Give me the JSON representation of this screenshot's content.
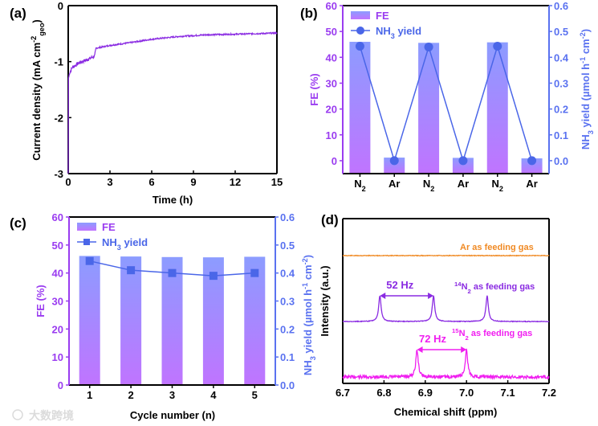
{
  "figure": {
    "watermark": "大数跨境",
    "colors": {
      "purple_axis": "#9a3cf0",
      "blue_axis": "#5a72f0",
      "bar_top": "#8c9cff",
      "bar_bottom": "#c074ff",
      "line_blue": "#4a66e8",
      "orange": "#f08a24",
      "nmr_purple": "#8a2be2",
      "magenta": "#f01ef0",
      "trace_a": "#8a2be2"
    }
  },
  "chart_data": [
    {
      "panel": "(a)",
      "type": "line",
      "xlabel": "Time (h)",
      "ylabel": [
        {
          "t": "Current density (mA cm"
        },
        {
          "t": "-2",
          "s": "sup"
        },
        {
          "t": "geo",
          "s": "sub"
        },
        {
          "t": ")"
        }
      ],
      "xlim": [
        0,
        15
      ],
      "ylim": [
        -3,
        0
      ],
      "xticks": [
        "0",
        "3",
        "6",
        "9",
        "12",
        "15"
      ],
      "yticks": [
        "0",
        "-1",
        "-2",
        "-3"
      ],
      "x": [
        0,
        0.02,
        0.1,
        0.3,
        0.8,
        1.5,
        1.9,
        2.0,
        3,
        4.5,
        6,
        8,
        10,
        12,
        15
      ],
      "y": [
        -3.0,
        -1.3,
        -1.2,
        -1.1,
        -1.02,
        -0.95,
        -0.9,
        -0.76,
        -0.71,
        -0.66,
        -0.6,
        -0.55,
        -0.52,
        -0.51,
        -0.49
      ]
    },
    {
      "panel": "(b)",
      "type": "bar+line",
      "categories": [
        [
          {
            "t": "N"
          },
          {
            "t": "2",
            "s": "sub"
          }
        ],
        [
          {
            "t": "Ar"
          }
        ],
        [
          {
            "t": "N"
          },
          {
            "t": "2",
            "s": "sub"
          }
        ],
        [
          {
            "t": "Ar"
          }
        ],
        [
          {
            "t": "N"
          },
          {
            "t": "2",
            "s": "sub"
          }
        ],
        [
          {
            "t": "Ar"
          }
        ]
      ],
      "ylabel_left": [
        {
          "t": "FE (%)"
        }
      ],
      "ylabel_right": [
        {
          "t": "NH"
        },
        {
          "t": "3",
          "s": "sub"
        },
        {
          "t": " yield (µmol h"
        },
        {
          "t": "-1",
          "s": "sup"
        },
        {
          "t": " cm"
        },
        {
          "t": "-2",
          "s": "sup"
        },
        {
          "t": ")"
        }
      ],
      "ylim_left": [
        -5,
        60
      ],
      "ylim_right": [
        -0.05,
        0.6
      ],
      "yticks_left": [
        "0",
        "10",
        "20",
        "30",
        "40",
        "50",
        "60"
      ],
      "yticks_right": [
        "0.0",
        "0.1",
        "0.2",
        "0.3",
        "0.4",
        "0.5",
        "0.6"
      ],
      "legend": {
        "placement": "top-left",
        "entries": [
          [
            {
              "t": "FE"
            }
          ],
          [
            {
              "t": "NH"
            },
            {
              "t": "3",
              "s": "sub"
            },
            {
              "t": " yield"
            }
          ]
        ]
      },
      "marker": "circle",
      "series": [
        {
          "name": "FE",
          "axis": "left",
          "values": [
            46.0,
            1.2,
            45.6,
            1.1,
            45.8,
            0.9
          ]
        },
        {
          "name": "NH3 yield",
          "axis": "right",
          "values": [
            0.443,
            0.0,
            0.44,
            0.0,
            0.443,
            0.0
          ]
        }
      ]
    },
    {
      "panel": "(c)",
      "type": "bar+line",
      "xlabel": "Cycle number (n)",
      "categories": [
        [
          {
            "t": "1"
          }
        ],
        [
          {
            "t": "2"
          }
        ],
        [
          {
            "t": "3"
          }
        ],
        [
          {
            "t": "4"
          }
        ],
        [
          {
            "t": "5"
          }
        ]
      ],
      "ylabel_left": [
        {
          "t": "FE (%)"
        }
      ],
      "ylabel_right": [
        {
          "t": "NH"
        },
        {
          "t": "3",
          "s": "sub"
        },
        {
          "t": " yield (µmol h"
        },
        {
          "t": "-1",
          "s": "sup"
        },
        {
          "t": " cm"
        },
        {
          "t": "-2",
          "s": "sup"
        },
        {
          "t": ")"
        }
      ],
      "ylim_left": [
        0,
        60
      ],
      "ylim_right": [
        0,
        0.6
      ],
      "yticks_left": [
        "0",
        "10",
        "20",
        "30",
        "40",
        "50",
        "60"
      ],
      "yticks_right": [
        "0.0",
        "0.1",
        "0.2",
        "0.3",
        "0.4",
        "0.5",
        "0.6"
      ],
      "legend": {
        "placement": "top-left",
        "entries": [
          [
            {
              "t": "FE"
            }
          ],
          [
            {
              "t": "NH"
            },
            {
              "t": "3",
              "s": "sub"
            },
            {
              "t": " yield"
            }
          ]
        ]
      },
      "marker": "square",
      "series": [
        {
          "name": "FE",
          "axis": "left",
          "values": [
            46.1,
            45.9,
            45.7,
            45.6,
            45.8
          ]
        },
        {
          "name": "NH3 yield",
          "axis": "right",
          "values": [
            0.443,
            0.41,
            0.4,
            0.39,
            0.4
          ]
        }
      ]
    },
    {
      "panel": "(d)",
      "type": "line",
      "xlabel": "Chemical shift (ppm)",
      "ylabel": [
        {
          "t": "Intensity (a.u.)"
        }
      ],
      "xlim": [
        6.7,
        7.2
      ],
      "xticks": [
        "6.7",
        "6.8",
        "6.9",
        "7.0",
        "7.1",
        "7.2"
      ],
      "series": [
        {
          "name": [
            {
              "t": "Ar as feeding gas"
            }
          ],
          "color": "#f08a24",
          "peaks_ppm": [],
          "noise": "low"
        },
        {
          "name": [
            {
              "t": "14",
              "s": "sup"
            },
            {
              "t": "N"
            },
            {
              "t": "2",
              "s": "sub"
            },
            {
              "t": " as feeding gas"
            }
          ],
          "color": "#8a2be2",
          "peaks_ppm": [
            6.79,
            6.92,
            7.05
          ],
          "noise": "low"
        },
        {
          "name": [
            {
              "t": "15",
              "s": "sup"
            },
            {
              "t": "N"
            },
            {
              "t": "2",
              "s": "sub"
            },
            {
              "t": " as feeding gas"
            }
          ],
          "color": "#f01ef0",
          "peaks_ppm": [
            6.88,
            7.0
          ],
          "noise": "high"
        }
      ],
      "annotations": [
        {
          "text": "52 Hz",
          "from_ppm": 6.79,
          "to_ppm": 6.92,
          "color": "#8a2be2"
        },
        {
          "text": "72 Hz",
          "from_ppm": 6.88,
          "to_ppm": 7.0,
          "color": "#f01ef0"
        }
      ]
    }
  ]
}
